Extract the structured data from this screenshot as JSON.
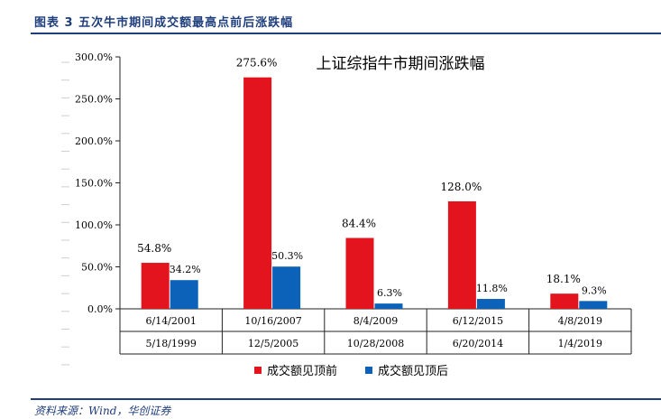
{
  "header": {
    "title": "图表 3 五次牛市期间成交额最高点前后涨跌幅"
  },
  "footer": {
    "source": "资料来源：Wind，华创证券"
  },
  "colors": {
    "before": "#e3141e",
    "after": "#0b62b8",
    "header": "#1f3e7c"
  },
  "chart_data": {
    "type": "bar",
    "title": "上证综指牛市期间涨跌幅",
    "categories": [
      {
        "peak": "6/14/2001",
        "start": "5/18/1999"
      },
      {
        "peak": "10/16/2007",
        "start": "12/5/2005"
      },
      {
        "peak": "8/4/2009",
        "start": "10/28/2008"
      },
      {
        "peak": "6/12/2015",
        "start": "6/20/2014"
      },
      {
        "peak": "4/8/2019",
        "start": "1/4/2019"
      }
    ],
    "series": [
      {
        "name": "成交额见顶前",
        "values": [
          54.8,
          275.6,
          84.4,
          128.0,
          18.1
        ],
        "labels": [
          "54.8%",
          "275.6%",
          "84.4%",
          "128.0%",
          "18.1%"
        ]
      },
      {
        "name": "成交额见顶后",
        "values": [
          34.2,
          50.3,
          6.3,
          11.8,
          9.3
        ],
        "labels": [
          "34.2%",
          "50.3%",
          "6.3%",
          "11.8%",
          "9.3%"
        ]
      }
    ],
    "ylim": [
      0,
      300
    ],
    "yticks": [
      "0.0%",
      "50.0%",
      "100.0%",
      "150.0%",
      "200.0%",
      "250.0%",
      "300.0%"
    ],
    "ytick_values": [
      0,
      50,
      100,
      150,
      200,
      250,
      300
    ],
    "legend": {
      "position": "bottom-center"
    }
  }
}
